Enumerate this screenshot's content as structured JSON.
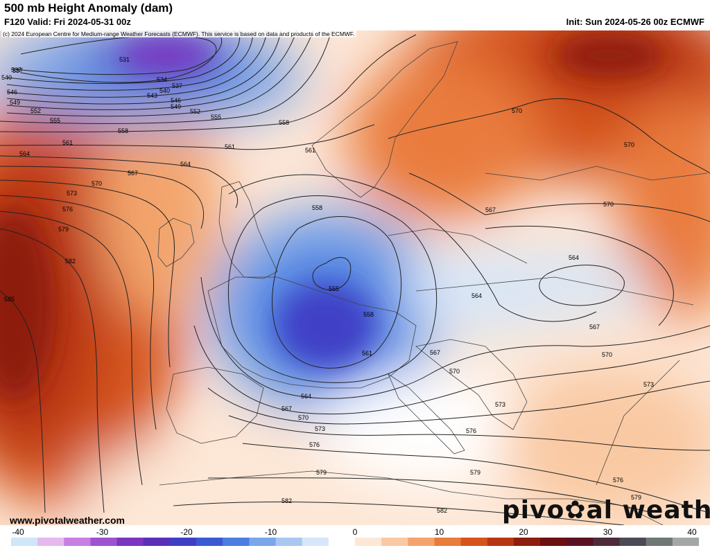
{
  "header": {
    "title": "500 mb Height Anomaly (dam)",
    "valid": "F120 Valid: Fri 2024-05-31 00z",
    "init": "Init: Sun 2024-05-26 00z ECMWF",
    "copyright": "(c) 2024 European Centre for Medium-range Weather Forecasts (ECMWF). This service is based on data and products of the ECMWF."
  },
  "footer": {
    "site": "www.pivotalweather.com",
    "logo_left": "pivo",
    "logo_right": "al weather"
  },
  "colorbar": {
    "ticks": [
      "-40",
      "-30",
      "-20",
      "-10",
      "0",
      "10",
      "20",
      "30",
      "40"
    ],
    "colors": [
      "#cfe6f7",
      "#e5b8f0",
      "#c77fe3",
      "#9d52cf",
      "#7a35c1",
      "#5b2fb8",
      "#3f3fc6",
      "#3a5ad1",
      "#4a7ee0",
      "#7aa6ea",
      "#a9c7f1",
      "#d7e6f8",
      "#ffffff",
      "#fde7d6",
      "#f9c9a3",
      "#f3a46c",
      "#e97b3c",
      "#d6541c",
      "#b73612",
      "#8e1d0e",
      "#6b0f10",
      "#5a1222",
      "#4f2a3a",
      "#4c4a55",
      "#6f7777",
      "#a3a7a8"
    ]
  },
  "map": {
    "contour_labels": [
      "531",
      "534",
      "537",
      "540",
      "543",
      "546",
      "549",
      "552",
      "555",
      "558",
      "561",
      "564",
      "567",
      "570",
      "573",
      "576",
      "579",
      "582",
      "585"
    ],
    "anomaly_colors": {
      "deep_positive": "#8e1d0e",
      "strong_positive": "#d6541c",
      "positive": "#f3a46c",
      "weak_positive": "#fde7d6",
      "neutral": "#ffffff",
      "weak_negative": "#d7e6f8",
      "negative": "#7aa6ea",
      "strong_negative": "#3a5ad1",
      "deep_negative": "#7a35c1"
    }
  }
}
